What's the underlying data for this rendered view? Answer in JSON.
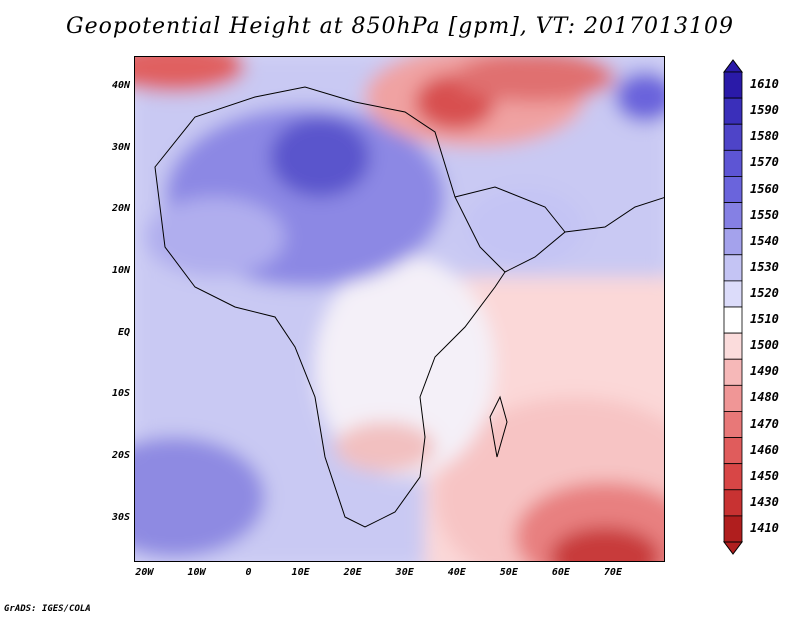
{
  "title": "Geopotential Height at 850hPa [gpm], VT: 2017013109",
  "credit": "GrADS: IGES/COLA",
  "map": {
    "lon_range": [
      -22,
      80
    ],
    "lat_range": [
      -37,
      45
    ],
    "y_ticks": [
      "40N",
      "30N",
      "20N",
      "10N",
      "EQ",
      "10S",
      "20S",
      "30S"
    ],
    "x_ticks": [
      "20W",
      "10W",
      "0",
      "10E",
      "20E",
      "30E",
      "40E",
      "50E",
      "60E",
      "70E"
    ]
  },
  "legend": {
    "labels": [
      "1610",
      "1590",
      "1580",
      "1570",
      "1560",
      "1550",
      "1540",
      "1530",
      "1520",
      "1510",
      "1500",
      "1490",
      "1480",
      "1470",
      "1460",
      "1450",
      "1430",
      "1410"
    ],
    "colors": [
      "#2a1aa8",
      "#3a2fba",
      "#4e44c8",
      "#5d55d4",
      "#6a64dc",
      "#8580e4",
      "#a4a2ec",
      "#c4c4f4",
      "#dcdcfa",
      "#ffffff",
      "#fbdcdc",
      "#f6b8b8",
      "#f09696",
      "#e87878",
      "#e05c5c",
      "#d84646",
      "#c83232",
      "#b01e1e"
    ]
  }
}
